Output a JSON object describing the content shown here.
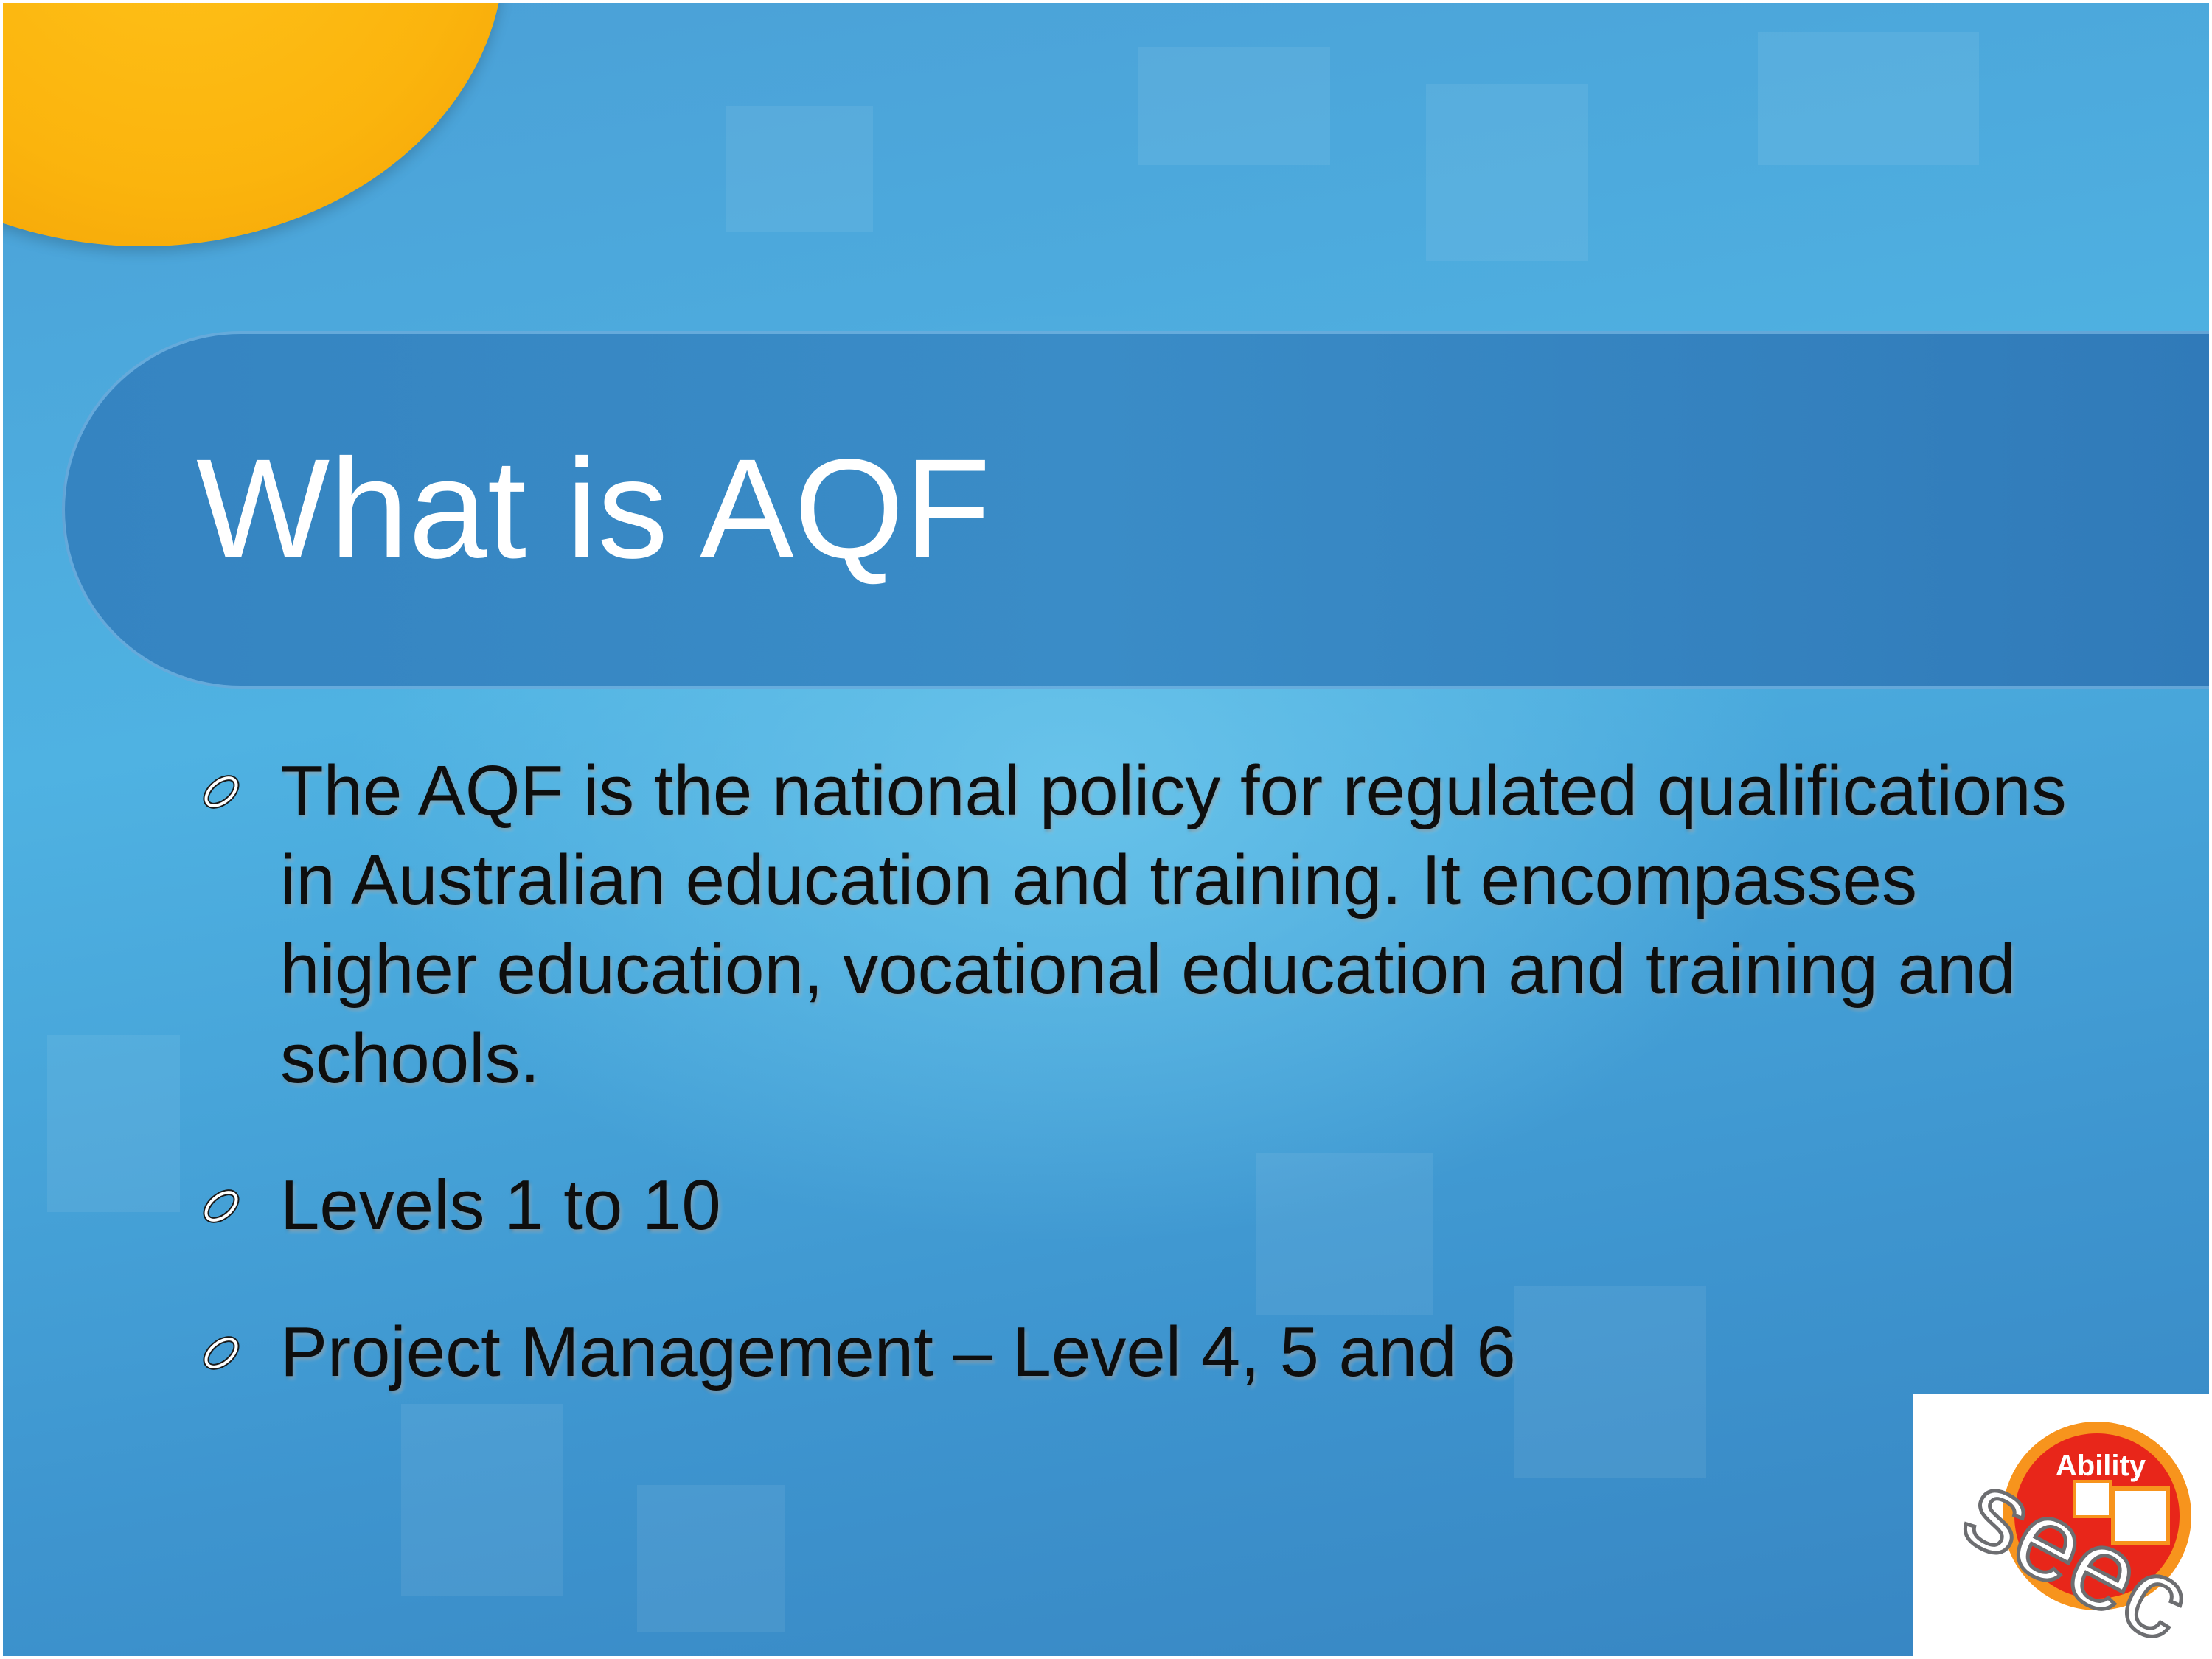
{
  "slide": {
    "title": "What is AQF",
    "bullets": [
      {
        "text": "The AQF is the national policy for regulated qualifications in Australian education and training. It encompasses higher education, vocational education and training and schools."
      },
      {
        "text": "Levels 1 to 10"
      },
      {
        "text": "Project Management – Level 4, 5 and 6"
      }
    ],
    "logo": {
      "top_word": "Ability",
      "letters": "seec"
    }
  },
  "colors": {
    "background": "#4fb2e2",
    "title_band": "#3584c1",
    "sun": "#fbb40d",
    "logo_red": "#e8261a",
    "logo_orange": "#f7941d"
  }
}
